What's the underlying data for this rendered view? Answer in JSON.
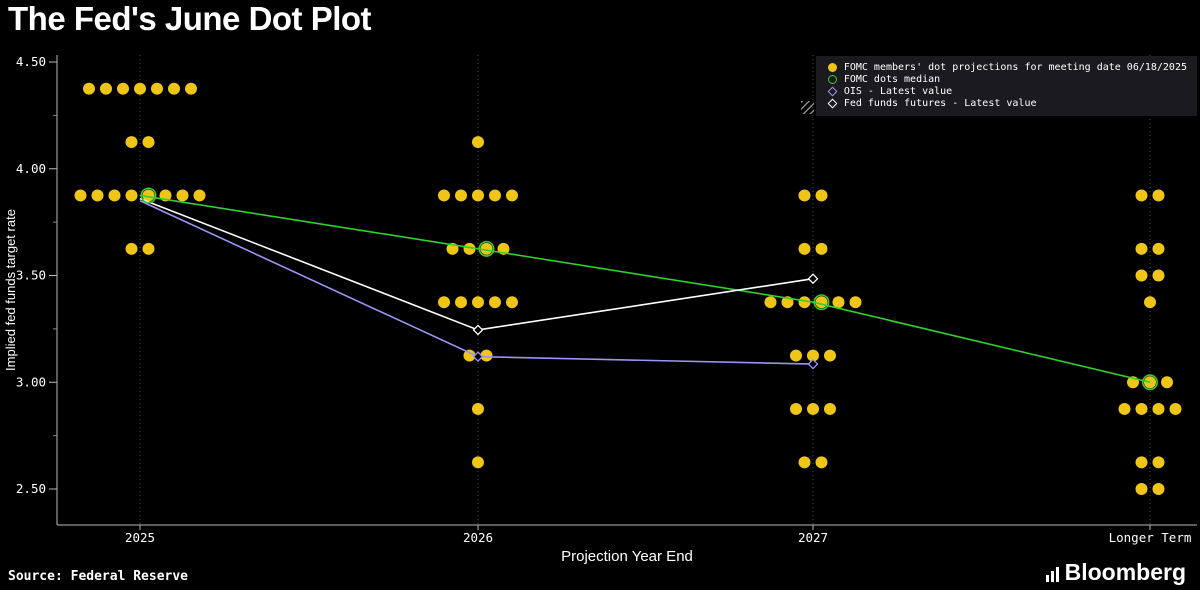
{
  "title": "The Fed's June Dot Plot",
  "footer": {
    "source": "Source: Federal Reserve",
    "brand": "Bloomberg"
  },
  "chart_data": {
    "type": "scatter",
    "title": "The Fed's June Dot Plot",
    "xlabel": "Projection Year End",
    "ylabel": "Implied fed funds target rate",
    "ylim": [
      2.33,
      4.53
    ],
    "yticks": [
      "2.50",
      "3.00",
      "3.50",
      "4.00",
      "4.50"
    ],
    "categories": [
      "2025",
      "2026",
      "2027",
      "Longer Term"
    ],
    "grid": "vertical-dotted",
    "dot_color": "#efc617",
    "dots": [
      {
        "category": "2025",
        "rows": [
          {
            "rate": 4.375,
            "count": 7
          },
          {
            "rate": 4.125,
            "count": 2
          },
          {
            "rate": 3.875,
            "count": 8
          },
          {
            "rate": 3.625,
            "count": 2
          }
        ]
      },
      {
        "category": "2026",
        "rows": [
          {
            "rate": 4.125,
            "count": 1
          },
          {
            "rate": 3.875,
            "count": 5
          },
          {
            "rate": 3.625,
            "count": 4
          },
          {
            "rate": 3.375,
            "count": 5
          },
          {
            "rate": 3.125,
            "count": 2
          },
          {
            "rate": 2.875,
            "count": 1
          },
          {
            "rate": 2.625,
            "count": 1
          }
        ]
      },
      {
        "category": "2027",
        "rows": [
          {
            "rate": 3.875,
            "count": 2
          },
          {
            "rate": 3.625,
            "count": 2
          },
          {
            "rate": 3.375,
            "count": 6
          },
          {
            "rate": 3.125,
            "count": 3
          },
          {
            "rate": 2.875,
            "count": 3
          },
          {
            "rate": 2.625,
            "count": 2
          }
        ]
      },
      {
        "category": "Longer Term",
        "rows": [
          {
            "rate": 3.875,
            "count": 2
          },
          {
            "rate": 3.625,
            "count": 2
          },
          {
            "rate": 3.5,
            "count": 2
          },
          {
            "rate": 3.375,
            "count": 1
          },
          {
            "rate": 3.0,
            "count": 3
          },
          {
            "rate": 2.875,
            "count": 4
          },
          {
            "rate": 2.625,
            "count": 2
          },
          {
            "rate": 2.5,
            "count": 2
          }
        ]
      }
    ],
    "series": [
      {
        "name": "FOMC dots median",
        "color": "#2fd02f",
        "marker": "circle",
        "points": [
          {
            "category": "2025",
            "value": 3.875
          },
          {
            "category": "2026",
            "value": 3.625
          },
          {
            "category": "2027",
            "value": 3.375
          },
          {
            "category": "Longer Term",
            "value": 3.0
          }
        ]
      },
      {
        "name": "OIS - Latest value",
        "color": "#9b93f5",
        "marker": "diamond",
        "points": [
          {
            "category": "2025",
            "value": 3.85
          },
          {
            "category": "2026",
            "value": 3.12
          },
          {
            "category": "2027",
            "value": 3.085
          }
        ]
      },
      {
        "name": "Fed funds futures - Latest value",
        "color": "#ffffff",
        "marker": "diamond",
        "points": [
          {
            "category": "2025",
            "value": 3.86
          },
          {
            "category": "2026",
            "value": 3.245
          },
          {
            "category": "2027",
            "value": 3.485
          }
        ]
      }
    ],
    "legend_position": "top-right",
    "legend": [
      {
        "marker": "dot",
        "color": "#efc617",
        "label": "FOMC members' dot projections for meeting date 06/18/2025"
      },
      {
        "marker": "circle",
        "color": "#2fd02f",
        "label": "FOMC dots median"
      },
      {
        "marker": "diamond",
        "color": "#9b93f5",
        "label": "OIS - Latest value"
      },
      {
        "marker": "diamond",
        "color": "#ffffff",
        "label": "Fed funds futures - Latest value"
      }
    ]
  }
}
